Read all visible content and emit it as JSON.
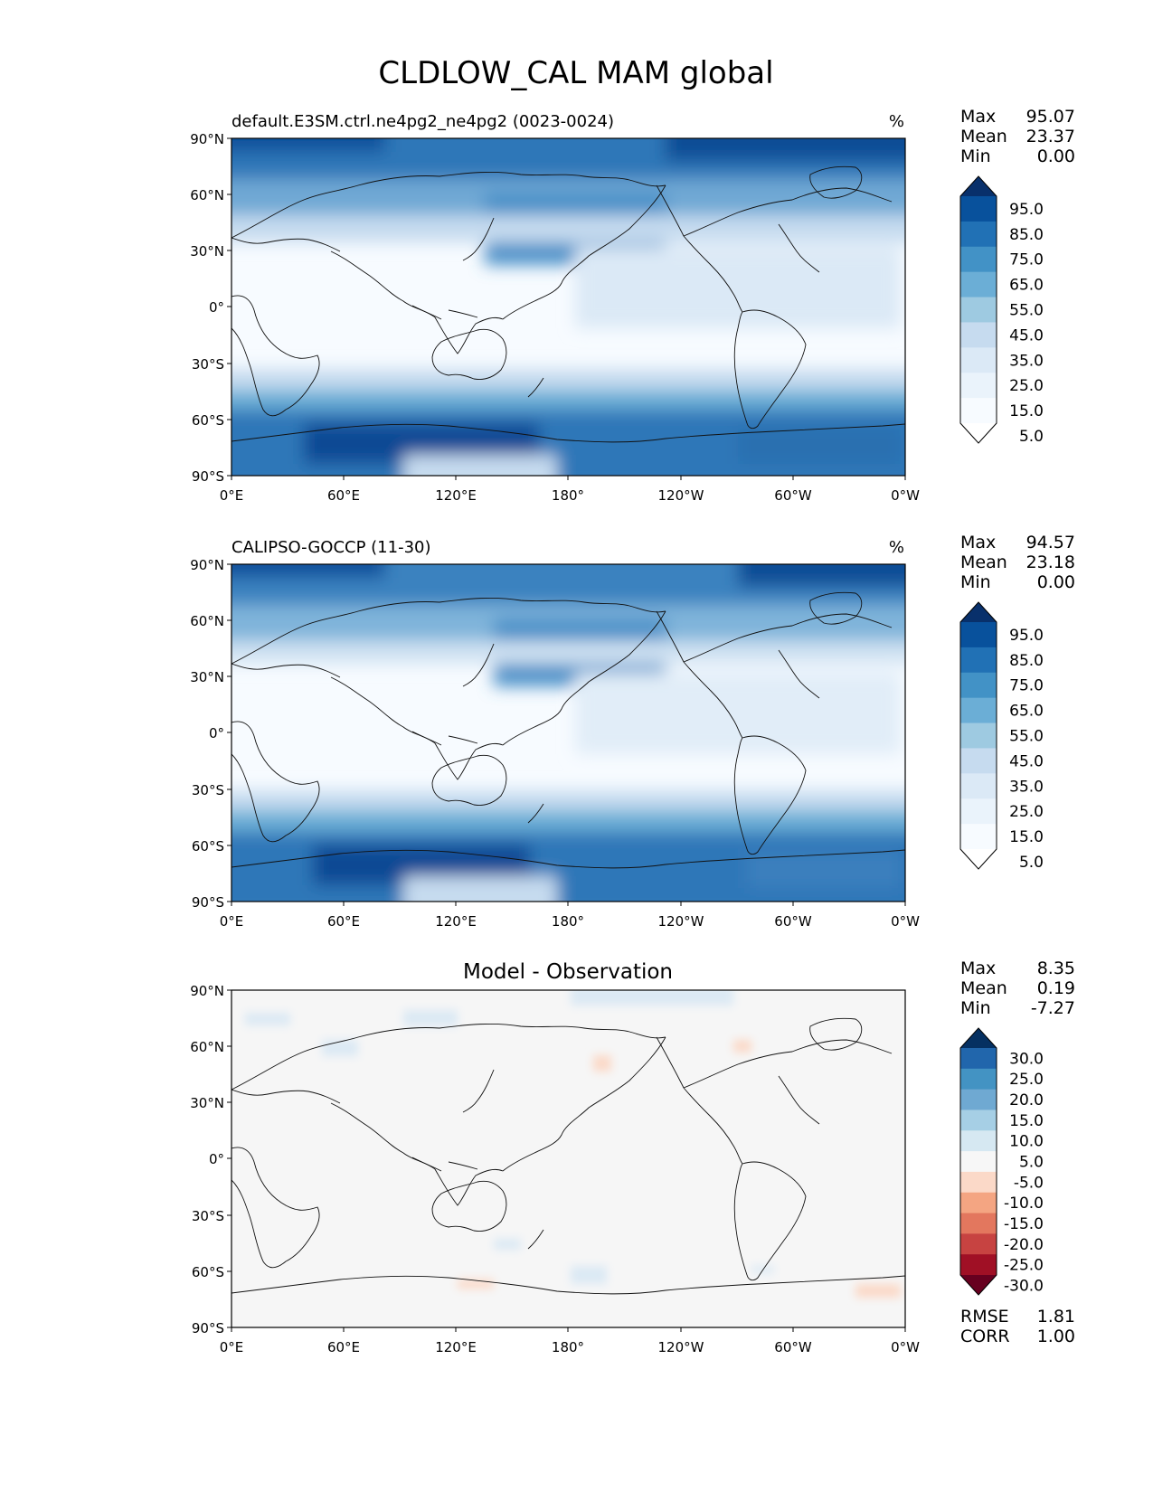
{
  "figure": {
    "title": "CLDLOW_CAL MAM global"
  },
  "axes": {
    "lat_ticks": [
      "90°N",
      "60°N",
      "30°N",
      "0°",
      "30°S",
      "60°S",
      "90°S"
    ],
    "lon_ticks": [
      "0°E",
      "60°E",
      "120°E",
      "180°",
      "120°W",
      "60°W",
      "0°W"
    ]
  },
  "panels": [
    {
      "id": "model",
      "title_left": "default.E3SM.ctrl.ne4pg2_ne4pg2 (0023-0024)",
      "title_center": "",
      "units": "%",
      "stats": [
        {
          "label": "Max",
          "value": "95.07"
        },
        {
          "label": "Mean",
          "value": "23.37"
        },
        {
          "label": "Min",
          "value": "0.00"
        }
      ],
      "colorbar": {
        "labels": [
          "95.0",
          "85.0",
          "75.0",
          "65.0",
          "55.0",
          "45.0",
          "35.0",
          "25.0",
          "15.0",
          "5.0"
        ],
        "colors": [
          "#08306b",
          "#08519c",
          "#2171b5",
          "#4292c6",
          "#6baed6",
          "#9ecae1",
          "#c6dbef",
          "#dbe9f6",
          "#eaf3fb",
          "#f7fbff",
          "#ffffff"
        ]
      }
    },
    {
      "id": "obs",
      "title_left": "CALIPSO-GOCCP (11-30)",
      "title_center": "",
      "units": "%",
      "stats": [
        {
          "label": "Max",
          "value": "94.57"
        },
        {
          "label": "Mean",
          "value": "23.18"
        },
        {
          "label": "Min",
          "value": "0.00"
        }
      ],
      "colorbar": {
        "labels": [
          "95.0",
          "85.0",
          "75.0",
          "65.0",
          "55.0",
          "45.0",
          "35.0",
          "25.0",
          "15.0",
          "5.0"
        ],
        "colors": [
          "#08306b",
          "#08519c",
          "#2171b5",
          "#4292c6",
          "#6baed6",
          "#9ecae1",
          "#c6dbef",
          "#dbe9f6",
          "#eaf3fb",
          "#f7fbff",
          "#ffffff"
        ]
      }
    },
    {
      "id": "diff",
      "title_left": "",
      "title_center": "Model - Observation",
      "units": "",
      "stats": [
        {
          "label": "Max",
          "value": "8.35"
        },
        {
          "label": "Mean",
          "value": "0.19"
        },
        {
          "label": "Min",
          "value": "-7.27"
        }
      ],
      "colorbar": {
        "labels": [
          "30.0",
          "25.0",
          "20.0",
          "15.0",
          "10.0",
          "5.0",
          "-5.0",
          "-10.0",
          "-15.0",
          "-20.0",
          "-25.0",
          "-30.0"
        ],
        "colors": [
          "#053061",
          "#2166ac",
          "#4393c3",
          "#6fa9d2",
          "#a6cfe5",
          "#d6e8f2",
          "#f7f7f7",
          "#fbd9c8",
          "#f4a582",
          "#e3775e",
          "#c74341",
          "#a01025",
          "#67001f"
        ]
      },
      "extra_stats": [
        {
          "label": "RMSE",
          "value": "1.81"
        },
        {
          "label": "CORR",
          "value": "1.00"
        }
      ]
    }
  ]
}
